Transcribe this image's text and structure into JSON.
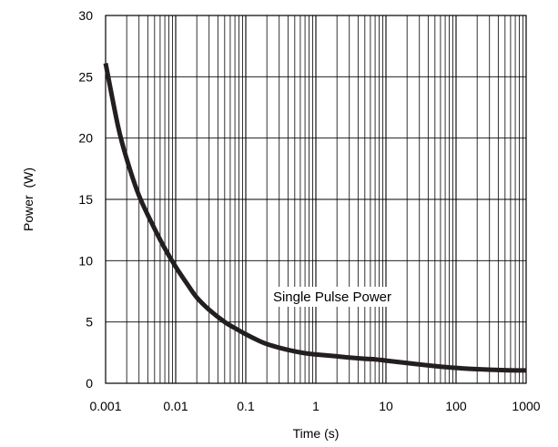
{
  "chart_data": {
    "type": "line",
    "title": "",
    "xlabel": "Time (s)",
    "ylabel": "Power  (W)",
    "x_scale": "log",
    "xlim": [
      0.001,
      1000
    ],
    "ylim": [
      0,
      30
    ],
    "grid": true,
    "x_ticks": [
      0.001,
      0.01,
      0.1,
      1,
      10,
      100,
      1000
    ],
    "x_tick_labels": [
      "0.001",
      "0.01",
      "0.1",
      "1",
      "10",
      "100",
      "1000"
    ],
    "y_ticks": [
      0,
      5,
      10,
      15,
      20,
      25,
      30
    ],
    "y_tick_labels": [
      "0",
      "5",
      "10",
      "15",
      "20",
      "25",
      "30"
    ],
    "annotations": [
      {
        "text": "Single Pulse Power"
      }
    ],
    "series": [
      {
        "name": "",
        "x": [
          0.001,
          0.0015,
          0.002,
          0.003,
          0.005,
          0.007,
          0.01,
          0.015,
          0.02,
          0.03,
          0.05,
          0.07,
          0.1,
          0.15,
          0.2,
          0.3,
          0.5,
          0.7,
          1,
          2,
          3,
          5,
          7,
          10,
          20,
          50,
          100,
          200,
          500,
          1000
        ],
        "y": [
          26.1,
          21.0,
          18.3,
          15.3,
          12.6,
          11.0,
          9.5,
          8.0,
          7.0,
          6.0,
          5.0,
          4.5,
          4.0,
          3.5,
          3.2,
          2.9,
          2.6,
          2.45,
          2.35,
          2.2,
          2.1,
          2.0,
          1.95,
          1.85,
          1.65,
          1.4,
          1.25,
          1.15,
          1.07,
          1.05
        ]
      }
    ]
  }
}
